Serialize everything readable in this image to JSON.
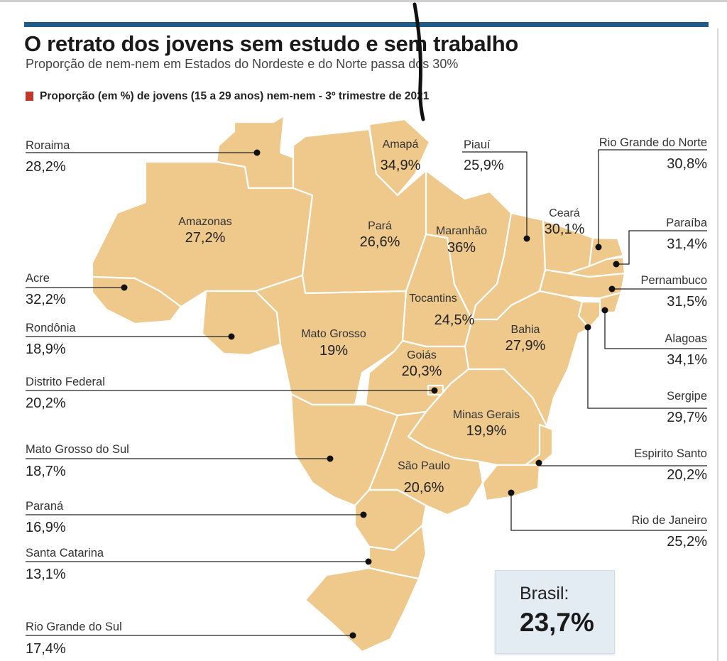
{
  "title": "O retrato dos jovens sem estudo e sem trabalho",
  "subtitle": "Proporção de nem-nem em Estados do Nordeste e do Norte passa dos 30%",
  "legend": {
    "text": "Proporção (em %) de jovens (15 a 29 anos) nem-nem - 3º trimestre de 2021",
    "color": "#c0392b"
  },
  "colors": {
    "map_fill": "#efc98c",
    "top_bar": "#1f5b86",
    "box_bg": "#e4ecf3"
  },
  "states": {
    "roraima": {
      "name": "Roraima",
      "value": "28,2%"
    },
    "amapa": {
      "name": "Amapá",
      "value": "34,9%"
    },
    "piaui": {
      "name": "Piauí",
      "value": "25,9%"
    },
    "rio_grande_do_norte": {
      "name": "Rio Grande do Norte",
      "value": "30,8%"
    },
    "amazonas": {
      "name": "Amazonas",
      "value": "27,2%"
    },
    "para": {
      "name": "Pará",
      "value": "26,6%"
    },
    "maranhao": {
      "name": "Maranhão",
      "value": "36%"
    },
    "ceara": {
      "name": "Ceará",
      "value": "30,1%"
    },
    "paraiba": {
      "name": "Paraíba",
      "value": "31,4%"
    },
    "acre": {
      "name": "Acre",
      "value": "32,2%"
    },
    "pernambuco": {
      "name": "Pernambuco",
      "value": "31,5%"
    },
    "tocantins": {
      "name": "Tocantins",
      "value": "24,5%"
    },
    "rondonia": {
      "name": "Rondônia",
      "value": "18,9%"
    },
    "mato_grosso": {
      "name": "Mato Grosso",
      "value": "19%"
    },
    "bahia": {
      "name": "Bahia",
      "value": "27,9%"
    },
    "alagoas": {
      "name": "Alagoas",
      "value": "34,1%"
    },
    "goias": {
      "name": "Goiás",
      "value": "20,3%"
    },
    "distrito_federal": {
      "name": "Distrito Federal",
      "value": "20,2%"
    },
    "sergipe": {
      "name": "Sergipe",
      "value": "29,7%"
    },
    "minas_gerais": {
      "name": "Minas Gerais",
      "value": "19,9%"
    },
    "mato_grosso_do_sul": {
      "name": "Mato Grosso do Sul",
      "value": "18,7%"
    },
    "espirito_santo": {
      "name": "Espirito Santo",
      "value": "20,2%"
    },
    "sao_paulo": {
      "name": "São Paulo",
      "value": "20,6%"
    },
    "parana": {
      "name": "Paraná",
      "value": "16,9%"
    },
    "rio_de_janeiro": {
      "name": "Rio de Janeiro",
      "value": "25,2%"
    },
    "santa_catarina": {
      "name": "Santa Catarina",
      "value": "13,1%"
    },
    "rio_grande_do_sul": {
      "name": "Rio Grande do Sul",
      "value": "17,4%"
    }
  },
  "brasil": {
    "label": "Brasil:",
    "value": "23,7%"
  }
}
